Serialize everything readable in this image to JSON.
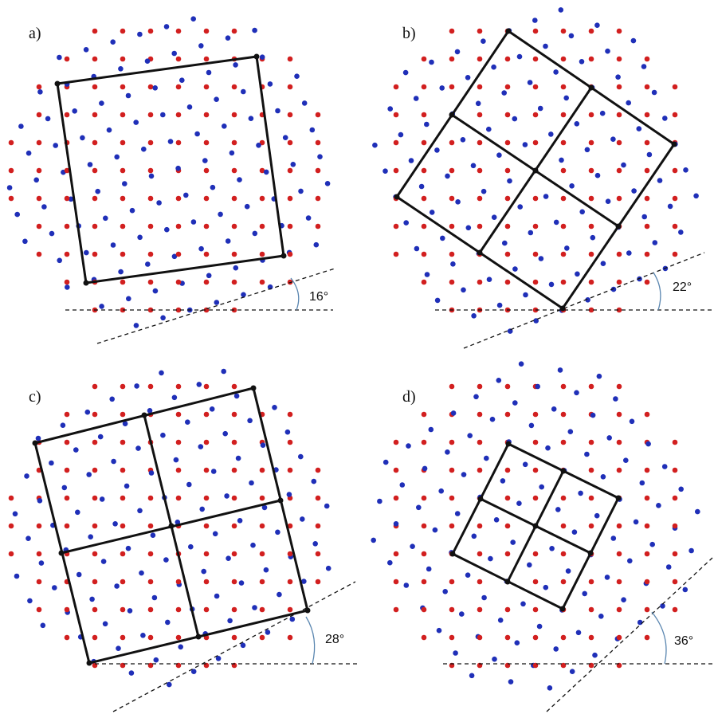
{
  "colors": {
    "lattice_a": "#d21f1f",
    "lattice_b": "#1f2fb8",
    "cell_outline": "#111111",
    "reference_line": "#111111",
    "angle_arc": "#5a86b0"
  },
  "panels": [
    {
      "id": "a",
      "label": "a)",
      "angle_label": "16°",
      "rotation_deg": 16,
      "supercell_subdivisions": 1
    },
    {
      "id": "b",
      "label": "b)",
      "angle_label": "22°",
      "rotation_deg": 22,
      "supercell_subdivisions": 2
    },
    {
      "id": "c",
      "label": "c)",
      "angle_label": "28°",
      "rotation_deg": 28,
      "supercell_subdivisions": 2
    },
    {
      "id": "d",
      "label": "d)",
      "angle_label": "36°",
      "rotation_deg": 36,
      "supercell_subdivisions": 2
    }
  ]
}
